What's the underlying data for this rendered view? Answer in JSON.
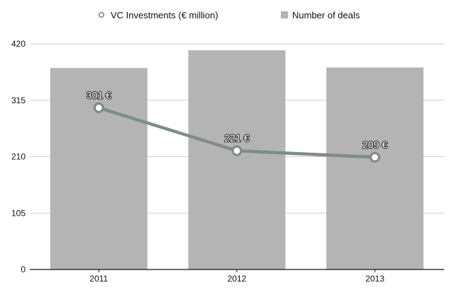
{
  "chart_data": {
    "type": "bar",
    "categories": [
      "2011",
      "2012",
      "2013"
    ],
    "series": [
      {
        "name": "VC Investments (€ million)",
        "type": "line",
        "values": [
          301,
          221,
          209
        ],
        "labels": [
          "301 €",
          "221 €",
          "209 €"
        ],
        "color": "#7f8c87"
      },
      {
        "name": "Number of deals",
        "type": "bar",
        "values": [
          375,
          408,
          376
        ],
        "color": "#b4b4b4"
      }
    ],
    "ylim": [
      0,
      420
    ],
    "yticks": [
      0,
      105,
      210,
      315,
      420
    ],
    "ytick_labels": [
      "0",
      "105",
      "210",
      "315",
      "420"
    ],
    "grid": true,
    "legend_position": "top"
  }
}
